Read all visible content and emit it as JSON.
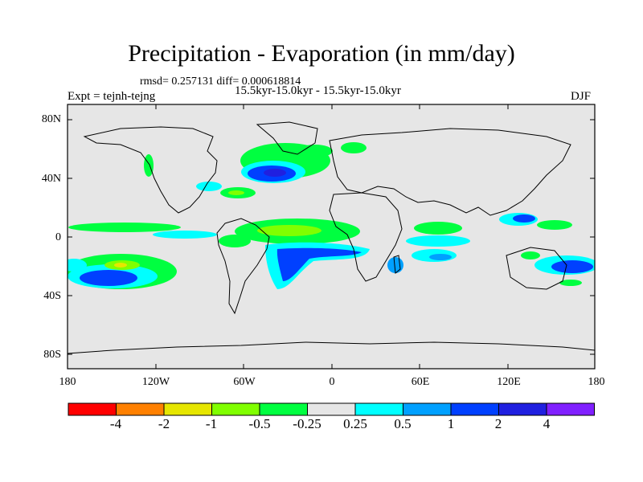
{
  "title": "Precipitation - Evaporation (in mm/day)",
  "stats": "rmsd= 0.257131 diff= 0.000618814",
  "period": "15.5kyr-15.0kyr - 15.5kyr-15.0kyr",
  "experiment": "Expt = tejnh-tejng",
  "season": "DJF",
  "map": {
    "projection": "cylindrical-equidistant",
    "lon_range": [
      -180,
      180
    ],
    "lat_range": [
      -90,
      90
    ],
    "lat_ticks": [
      "80N",
      "40N",
      "0",
      "40S",
      "80S"
    ],
    "lon_ticks": [
      "180",
      "120W",
      "60W",
      "0",
      "60E",
      "120E",
      "180"
    ],
    "background_color": "#e6e6e6"
  },
  "colorbar": {
    "labels": [
      "-4",
      "-2",
      "-1",
      "-0.5",
      "-0.25",
      "0.25",
      "0.5",
      "1",
      "2",
      "4"
    ],
    "colors": [
      "#ff0000",
      "#ff8000",
      "#e6e600",
      "#80ff00",
      "#00ff40",
      "#e6e6e6",
      "#00ffff",
      "#00a0ff",
      "#0040ff",
      "#2020e0",
      "#8020ff"
    ]
  }
}
